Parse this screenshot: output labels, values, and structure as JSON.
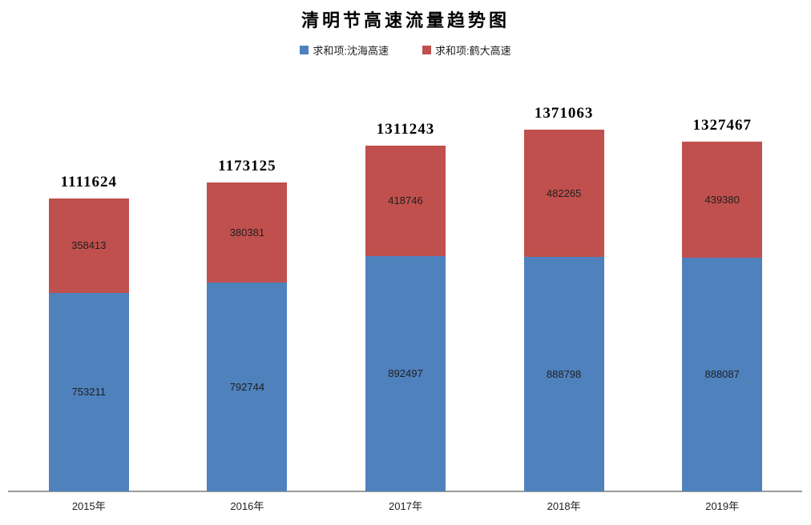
{
  "title": "清明节高速流量趋势图",
  "legend": [
    {
      "label": "求和项:沈海高速",
      "color": "#4F81BD"
    },
    {
      "label": "求和项:鹤大高速",
      "color": "#C0504D"
    }
  ],
  "colors": {
    "series_blue": "#4F81BD",
    "series_red": "#C0504D",
    "axis_line": "#9B9B9B",
    "label_text": "#1F1F1F",
    "title_text": "#000000"
  },
  "chart_data": {
    "type": "bar",
    "stacked": true,
    "title": "清明节高速流量趋势图",
    "xlabel": "",
    "ylabel": "",
    "categories": [
      "2015年",
      "2016年",
      "2017年",
      "2018年",
      "2019年"
    ],
    "series": [
      {
        "name": "求和项:沈海高速",
        "color": "#4F81BD",
        "values": [
          753211,
          792744,
          892497,
          888798,
          888087
        ]
      },
      {
        "name": "求和项:鹤大高速",
        "color": "#C0504D",
        "values": [
          358413,
          380381,
          418746,
          482265,
          439380
        ]
      }
    ],
    "totals": [
      1111624,
      1173125,
      1311243,
      1371063,
      1327467
    ],
    "ylim": [
      0,
      1400000
    ],
    "grid": false,
    "legend_position": "top",
    "data_labels": "inside-center",
    "total_labels": "above-bar"
  }
}
